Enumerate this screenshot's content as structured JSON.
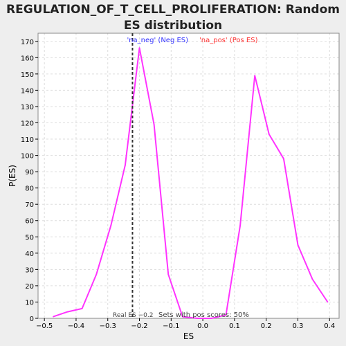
{
  "chart_data": {
    "type": "line",
    "title": "REGULATION_OF_T_CELL_PROLIFERATION: Random ES distribution",
    "title_lines": [
      "REGULATION_OF_T_CELL_PROLIFERATION: Random",
      "ES distribution"
    ],
    "xlabel": "ES",
    "ylabel": "P(ES)",
    "xlim": [
      -0.52,
      0.43
    ],
    "ylim": [
      0,
      175
    ],
    "x_ticks": [
      -0.5,
      -0.4,
      -0.3,
      -0.2,
      -0.1,
      0.0,
      0.1,
      0.2,
      0.3,
      0.4
    ],
    "x_tick_labels": [
      "−0.5",
      "−0.4",
      "−0.3",
      "−0.2",
      "−0.1",
      "0.0",
      "0.1",
      "0.2",
      "0.3",
      "0.4"
    ],
    "y_ticks": [
      0,
      10,
      20,
      30,
      40,
      50,
      60,
      70,
      80,
      90,
      100,
      110,
      120,
      130,
      140,
      150,
      160,
      170
    ],
    "grid": true,
    "series": [
      {
        "color": "#ff33ff",
        "x": [
          -0.472,
          -0.427,
          -0.381,
          -0.336,
          -0.29,
          -0.245,
          -0.2,
          -0.154,
          -0.109,
          -0.064,
          -0.018,
          0.027,
          0.073,
          0.118,
          0.164,
          0.209,
          0.255,
          0.3,
          0.346,
          0.394
        ],
        "y": [
          1,
          4,
          6,
          27,
          57,
          94,
          166,
          119,
          27,
          1,
          0,
          0,
          2,
          57,
          149,
          113,
          98,
          45,
          24,
          10
        ]
      }
    ],
    "real_es": {
      "x": -0.222,
      "label": "Real ES −0.2"
    },
    "annotations": {
      "neg": {
        "text": "'na_neg' (Neg ES)",
        "color": "#3333ff"
      },
      "pos": {
        "text": "'na_pos' (Pos ES)",
        "color": "#ff3333"
      },
      "sets": {
        "text": "Sets with pos scores: 50%"
      }
    },
    "colors": {
      "background": "#eeeeee",
      "plot_background": "#ffffff",
      "grid": "#dddddd",
      "axis": "#000000"
    }
  }
}
